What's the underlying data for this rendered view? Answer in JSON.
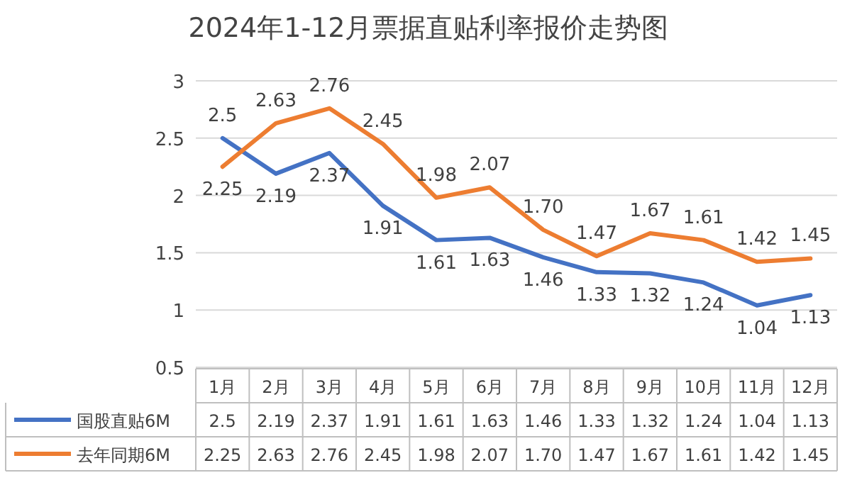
{
  "chart_data": {
    "type": "line",
    "title": "2024年1-12月票据直贴利率报价走势图",
    "categories": [
      "1月",
      "2月",
      "3月",
      "4月",
      "5月",
      "6月",
      "7月",
      "8月",
      "9月",
      "10月",
      "11月",
      "12月"
    ],
    "series": [
      {
        "name": "国股直贴6M",
        "color": "#4472c4",
        "values": [
          2.5,
          2.19,
          2.37,
          1.91,
          1.61,
          1.63,
          1.46,
          1.33,
          1.32,
          1.24,
          1.04,
          1.13
        ],
        "value_labels": [
          "2.5",
          "2.19",
          "2.37",
          "1.91",
          "1.61",
          "1.63",
          "1.46",
          "1.33",
          "1.32",
          "1.24",
          "1.04",
          "1.13"
        ]
      },
      {
        "name": "去年同期6M",
        "color": "#ed7d31",
        "values": [
          2.25,
          2.63,
          2.76,
          2.45,
          1.98,
          2.07,
          1.7,
          1.47,
          1.67,
          1.61,
          1.42,
          1.45
        ],
        "value_labels": [
          "2.25",
          "2.63",
          "2.76",
          "2.45",
          "1.98",
          "2.07",
          "1.70",
          "1.47",
          "1.67",
          "1.61",
          "1.42",
          "1.45"
        ]
      }
    ],
    "ylim": [
      0.5,
      3
    ],
    "yticks": [
      0.5,
      1,
      1.5,
      2,
      2.5,
      3
    ],
    "grid": "y",
    "legend": "bottom",
    "data_labels": true,
    "marker": "none",
    "line_style": "solid"
  }
}
